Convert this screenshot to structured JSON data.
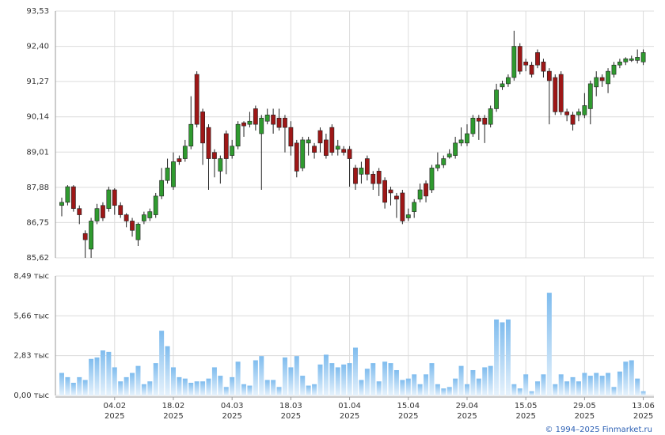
{
  "chart_data": [
    {
      "type": "candlestick",
      "up_color": "#2f9a2f",
      "down_color": "#9e1717",
      "grid": true,
      "ylim": [
        85.62,
        93.53
      ],
      "yticks": [
        {
          "value": 85.62,
          "label": "85,62"
        },
        {
          "value": 86.75,
          "label": "86,75"
        },
        {
          "value": 87.88,
          "label": "87,88"
        },
        {
          "value": 89.01,
          "label": "89,01"
        },
        {
          "value": 90.14,
          "label": "90,14"
        },
        {
          "value": 91.27,
          "label": "91,27"
        },
        {
          "value": 92.4,
          "label": "92,40"
        },
        {
          "value": 93.53,
          "label": "93,53"
        }
      ],
      "open": [
        87.3,
        87.4,
        87.9,
        87.2,
        86.4,
        85.9,
        86.8,
        87.3,
        87.2,
        87.8,
        87.3,
        87.0,
        86.8,
        86.2,
        86.8,
        86.9,
        87.0,
        87.6,
        88.1,
        87.9,
        88.8,
        88.8,
        89.2,
        91.5,
        90.3,
        89.8,
        89.0,
        88.4,
        89.6,
        88.9,
        89.2,
        89.95,
        89.9,
        90.4,
        89.6,
        90.0,
        90.2,
        90.1,
        90.1,
        89.8,
        89.3,
        88.5,
        89.3,
        89.2,
        89.7,
        89.4,
        89.8,
        89.1,
        89.1,
        89.1,
        88.5,
        88.3,
        88.8,
        88.3,
        88.4,
        88.1,
        87.8,
        87.6,
        87.7,
        86.9,
        87.1,
        87.5,
        88.0,
        87.8,
        88.5,
        88.6,
        88.85,
        88.9,
        89.3,
        89.3,
        89.6,
        90.1,
        90.1,
        89.9,
        90.4,
        91.1,
        91.2,
        91.4,
        92.4,
        91.9,
        91.8,
        92.2,
        91.9,
        91.6,
        91.4,
        91.5,
        90.3,
        90.2,
        90.2,
        90.2,
        90.4,
        91.1,
        91.4,
        91.2,
        91.5,
        91.8,
        91.9,
        91.95,
        91.95,
        91.9
      ],
      "high": [
        87.55,
        87.95,
        87.95,
        87.3,
        86.5,
        86.9,
        87.35,
        87.4,
        87.9,
        87.85,
        87.4,
        87.05,
        86.9,
        86.75,
        87.1,
        87.2,
        87.7,
        88.5,
        88.8,
        89.0,
        88.9,
        89.4,
        90.8,
        91.6,
        90.4,
        89.9,
        89.1,
        88.9,
        89.7,
        89.4,
        90.0,
        90.0,
        90.3,
        90.5,
        90.2,
        90.4,
        90.4,
        90.4,
        90.2,
        90.0,
        89.4,
        89.5,
        89.5,
        89.3,
        89.8,
        89.6,
        89.9,
        89.4,
        89.2,
        89.2,
        88.6,
        88.7,
        88.9,
        88.4,
        88.5,
        88.2,
        87.9,
        87.7,
        87.8,
        87.2,
        87.5,
        88.0,
        88.1,
        88.6,
        89.0,
        88.9,
        89.1,
        89.5,
        89.8,
        89.9,
        90.2,
        90.2,
        90.2,
        90.5,
        91.2,
        91.3,
        91.5,
        92.9,
        92.5,
        92.0,
        91.9,
        92.3,
        92.0,
        91.7,
        91.5,
        91.6,
        90.4,
        90.3,
        90.4,
        90.9,
        91.3,
        91.6,
        91.5,
        91.7,
        91.9,
        92.0,
        92.05,
        92.1,
        92.3,
        92.3
      ],
      "low": [
        86.95,
        87.3,
        87.1,
        86.7,
        85.62,
        85.62,
        86.7,
        86.8,
        87.1,
        87.0,
        86.9,
        86.6,
        86.3,
        86.0,
        86.7,
        86.8,
        86.9,
        87.5,
        88.0,
        87.8,
        88.6,
        88.7,
        89.1,
        89.8,
        88.6,
        87.8,
        88.2,
        88.0,
        88.3,
        88.8,
        89.1,
        89.5,
        89.8,
        89.7,
        87.8,
        89.9,
        89.6,
        89.7,
        89.0,
        88.9,
        88.2,
        88.4,
        88.9,
        88.8,
        89.0,
        88.8,
        88.9,
        88.9,
        88.9,
        87.9,
        87.8,
        88.0,
        88.1,
        87.8,
        87.6,
        87.2,
        87.3,
        86.9,
        86.7,
        86.8,
        86.9,
        87.4,
        87.4,
        87.7,
        88.4,
        88.5,
        88.8,
        88.8,
        89.2,
        89.2,
        89.5,
        89.4,
        89.3,
        89.8,
        90.3,
        91.0,
        91.1,
        91.3,
        91.5,
        91.6,
        91.4,
        91.7,
        91.4,
        89.9,
        90.2,
        90.2,
        90.0,
        89.7,
        90.0,
        90.1,
        89.9,
        90.8,
        91.1,
        90.9,
        91.4,
        91.7,
        91.8,
        91.9,
        91.85,
        91.8
      ],
      "close": [
        87.4,
        87.9,
        87.2,
        87.0,
        86.2,
        86.8,
        87.2,
        86.9,
        87.8,
        87.3,
        87.0,
        86.8,
        86.5,
        86.7,
        87.0,
        87.1,
        87.6,
        88.1,
        88.5,
        88.7,
        88.7,
        89.2,
        89.9,
        89.9,
        89.3,
        88.8,
        88.8,
        88.8,
        88.8,
        89.2,
        89.9,
        89.85,
        90.0,
        89.9,
        90.1,
        90.2,
        89.9,
        89.8,
        89.8,
        89.2,
        88.4,
        89.4,
        89.4,
        89.0,
        89.3,
        88.9,
        89.0,
        89.2,
        89.0,
        88.8,
        88.0,
        88.5,
        88.3,
        88.0,
        88.0,
        87.4,
        87.7,
        87.5,
        86.8,
        87.0,
        87.4,
        87.8,
        87.6,
        88.5,
        88.6,
        88.8,
        88.95,
        89.3,
        89.4,
        89.6,
        90.1,
        90.0,
        89.9,
        90.4,
        91.0,
        91.2,
        91.4,
        92.4,
        91.6,
        91.8,
        91.5,
        91.8,
        91.6,
        91.3,
        90.3,
        90.3,
        90.2,
        89.9,
        90.3,
        90.5,
        91.2,
        91.4,
        91.3,
        91.6,
        91.8,
        91.9,
        92.0,
        92.0,
        92.05,
        92.2
      ]
    },
    {
      "type": "bar",
      "color": "#7fbcee",
      "grid": true,
      "ylim": [
        0,
        8.49
      ],
      "yticks": [
        {
          "value": 0,
          "label": "0,00 тыс"
        },
        {
          "value": 2.83,
          "label": "2,83 тыс"
        },
        {
          "value": 5.66,
          "label": "5,66 тыс"
        },
        {
          "value": 8.49,
          "label": "8,49 тыс"
        }
      ],
      "categories": [
        null,
        null,
        null,
        null,
        null,
        null,
        null,
        null,
        null,
        "04.02",
        null,
        null,
        null,
        null,
        null,
        null,
        null,
        null,
        null,
        "18.02",
        null,
        null,
        null,
        null,
        null,
        null,
        null,
        null,
        null,
        "04.03",
        null,
        null,
        null,
        null,
        null,
        null,
        null,
        null,
        null,
        "18.03",
        null,
        null,
        null,
        null,
        null,
        null,
        null,
        null,
        null,
        "01.04",
        null,
        null,
        null,
        null,
        null,
        null,
        null,
        null,
        null,
        "15.04",
        null,
        null,
        null,
        null,
        null,
        null,
        null,
        null,
        null,
        "29.04",
        null,
        null,
        null,
        null,
        null,
        null,
        null,
        null,
        null,
        "15.05",
        null,
        null,
        null,
        null,
        null,
        null,
        null,
        null,
        null,
        "29.05",
        null,
        null,
        null,
        null,
        null,
        null,
        null,
        null,
        null,
        "13.06"
      ],
      "category_year": "2025",
      "values": [
        1.6,
        1.3,
        0.9,
        1.3,
        1.1,
        2.6,
        2.7,
        3.2,
        3.1,
        2.0,
        1.0,
        1.3,
        1.6,
        2.1,
        0.8,
        1.0,
        2.3,
        4.6,
        3.5,
        2.0,
        1.3,
        1.2,
        0.9,
        1.0,
        1.0,
        1.2,
        2.0,
        1.4,
        0.6,
        1.3,
        2.4,
        0.8,
        0.7,
        2.5,
        2.8,
        1.1,
        1.1,
        0.6,
        2.7,
        2.0,
        2.8,
        1.4,
        0.7,
        0.8,
        2.2,
        2.9,
        2.3,
        2.0,
        2.2,
        2.3,
        3.4,
        1.1,
        1.9,
        2.3,
        1.0,
        2.4,
        2.3,
        1.8,
        1.1,
        1.2,
        1.5,
        0.8,
        1.5,
        2.3,
        0.8,
        0.5,
        0.6,
        1.2,
        2.1,
        0.8,
        1.8,
        1.2,
        2.0,
        2.1,
        5.4,
        5.2,
        5.4,
        0.8,
        0.5,
        1.5,
        0.3,
        1.0,
        1.5,
        7.3,
        0.8,
        1.5,
        1.0,
        1.3,
        1.0,
        1.6,
        1.4,
        1.6,
        1.4,
        1.6,
        0.6,
        1.7,
        2.4,
        2.5,
        1.2,
        0.3
      ]
    }
  ],
  "footer": "© 1994–2025 Finmarket.ru"
}
